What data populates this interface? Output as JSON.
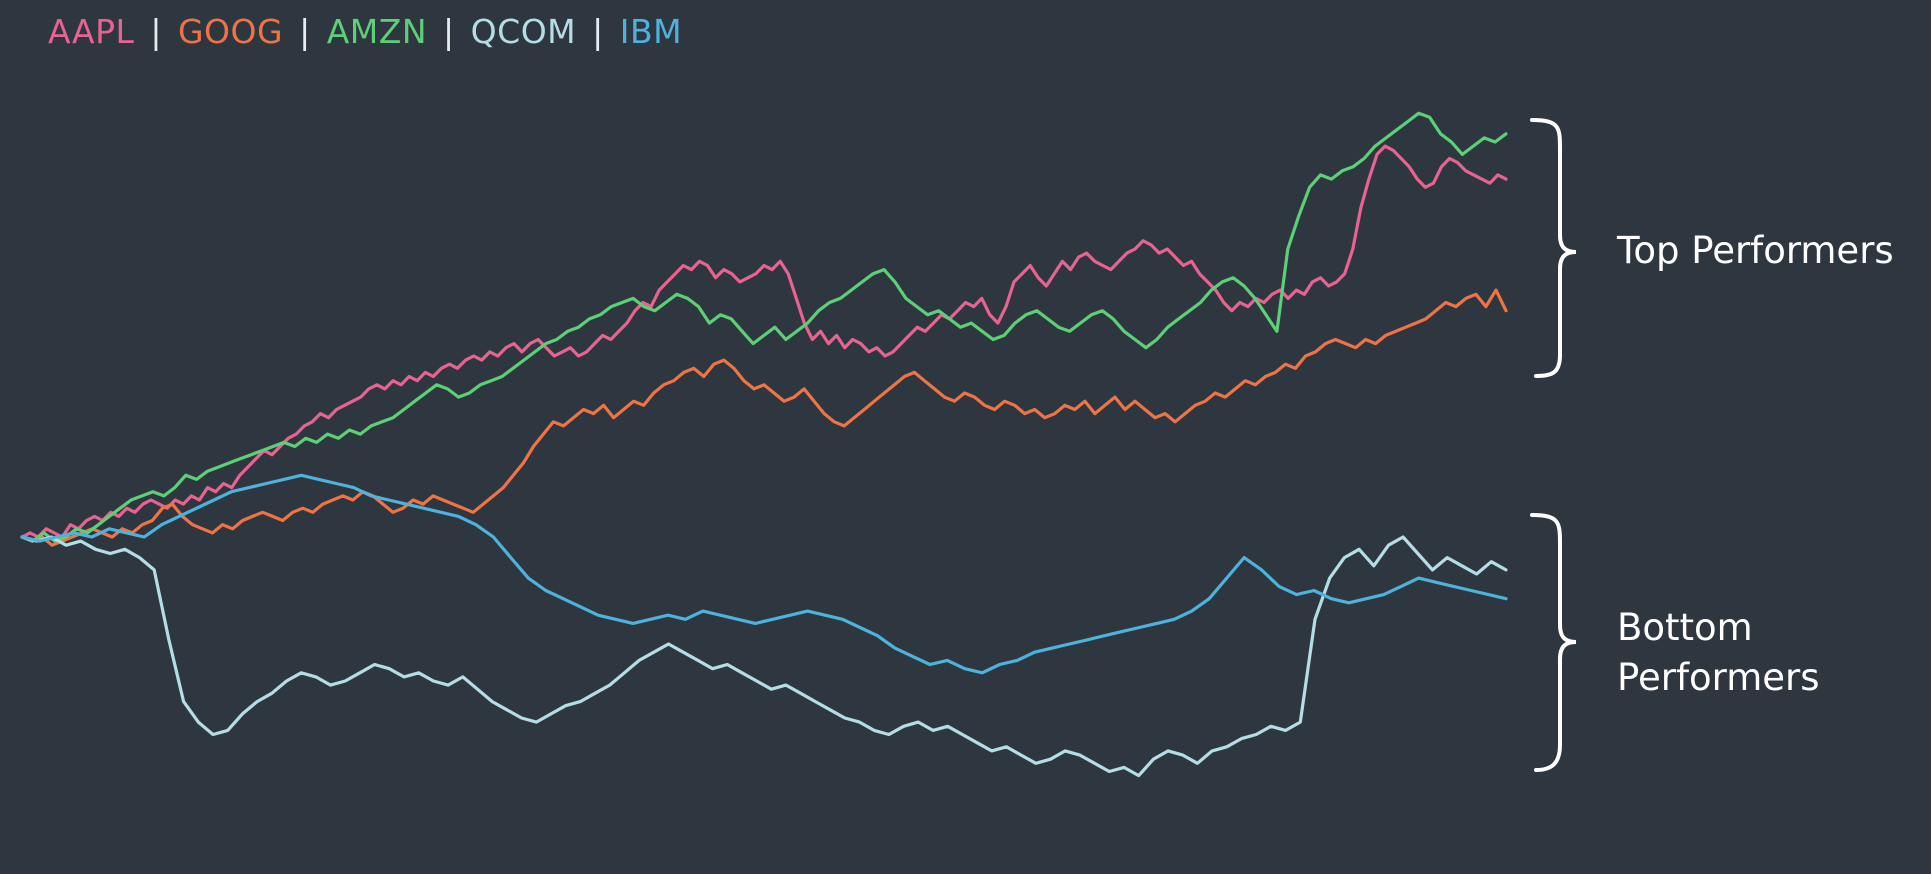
{
  "chart_data": {
    "type": "line",
    "title": "",
    "xlabel": "",
    "ylabel": "",
    "ylim": [
      -70,
      105
    ],
    "legend": "top-left",
    "grid": false,
    "series": [
      {
        "name": "AAPL",
        "color": "#e8638f",
        "values": [
          0,
          1,
          0,
          2,
          1,
          0,
          3,
          2,
          4,
          5,
          4,
          6,
          5,
          7,
          6,
          8,
          9,
          8,
          7,
          9,
          8,
          10,
          9,
          12,
          11,
          13,
          12,
          15,
          17,
          19,
          21,
          20,
          22,
          24,
          25,
          27,
          28,
          30,
          29,
          31,
          32,
          33,
          34,
          36,
          37,
          36,
          38,
          37,
          39,
          38,
          40,
          39,
          41,
          42,
          41,
          43,
          44,
          43,
          45,
          44,
          46,
          47,
          45,
          47,
          48,
          46,
          44,
          45,
          46,
          44,
          45,
          47,
          49,
          48,
          50,
          52,
          55,
          57,
          56,
          60,
          62,
          64,
          66,
          65,
          67,
          66,
          63,
          65,
          64,
          62,
          63,
          64,
          66,
          65,
          67,
          64,
          58,
          52,
          48,
          50,
          47,
          49,
          46,
          48,
          47,
          45,
          46,
          44,
          45,
          47,
          49,
          51,
          50,
          52,
          54,
          53,
          55,
          57,
          56,
          58,
          54,
          52,
          56,
          62,
          64,
          66,
          63,
          61,
          64,
          67,
          65,
          68,
          69,
          67,
          66,
          65,
          67,
          69,
          70,
          72,
          71,
          69,
          70,
          68,
          66,
          67,
          64,
          62,
          60,
          57,
          55,
          57,
          56,
          58,
          57,
          59,
          60,
          58,
          60,
          59,
          62,
          63,
          61,
          62,
          64,
          70,
          80,
          87,
          93,
          95,
          94,
          92,
          90,
          87,
          85,
          86,
          90,
          92,
          91,
          89,
          88,
          87,
          86,
          88,
          87
        ]
      },
      {
        "name": "GOOG",
        "color": "#ef7445",
        "values": [
          0,
          -1,
          0,
          -2,
          -1,
          0,
          1,
          2,
          1,
          0,
          2,
          1,
          3,
          4,
          7,
          8,
          5,
          3,
          2,
          1,
          3,
          2,
          4,
          5,
          6,
          5,
          4,
          6,
          7,
          6,
          8,
          9,
          10,
          9,
          11,
          10,
          8,
          6,
          7,
          9,
          8,
          10,
          9,
          8,
          7,
          6,
          8,
          10,
          12,
          15,
          18,
          22,
          25,
          28,
          27,
          29,
          31,
          30,
          32,
          29,
          31,
          33,
          32,
          35,
          37,
          38,
          40,
          41,
          39,
          42,
          43,
          41,
          38,
          36,
          37,
          35,
          33,
          34,
          36,
          33,
          30,
          28,
          27,
          29,
          31,
          33,
          35,
          37,
          39,
          40,
          38,
          36,
          34,
          33,
          35,
          34,
          32,
          31,
          33,
          32,
          30,
          31,
          29,
          30,
          32,
          31,
          33,
          30,
          32,
          34,
          31,
          33,
          31,
          29,
          30,
          28,
          30,
          32,
          33,
          35,
          34,
          36,
          38,
          37,
          39,
          40,
          42,
          41,
          44,
          45,
          47,
          48,
          47,
          46,
          48,
          47,
          49,
          50,
          51,
          52,
          53,
          55,
          57,
          56,
          58,
          59,
          56,
          60,
          55
        ]
      },
      {
        "name": "AMZN",
        "color": "#5dcf76",
        "values": [
          0,
          -1,
          1,
          -1,
          0,
          2,
          1,
          3,
          5,
          7,
          9,
          10,
          11,
          10,
          12,
          15,
          14,
          16,
          17,
          18,
          19,
          20,
          21,
          22,
          23,
          22,
          24,
          23,
          25,
          24,
          26,
          25,
          27,
          28,
          29,
          31,
          33,
          35,
          37,
          36,
          34,
          35,
          37,
          38,
          39,
          41,
          43,
          45,
          47,
          48,
          50,
          51,
          53,
          54,
          56,
          57,
          58,
          56,
          55,
          57,
          59,
          58,
          56,
          52,
          54,
          53,
          50,
          47,
          49,
          51,
          48,
          50,
          52,
          55,
          57,
          58,
          60,
          62,
          64,
          65,
          62,
          58,
          56,
          54,
          55,
          53,
          51,
          52,
          50,
          48,
          49,
          52,
          54,
          55,
          53,
          51,
          50,
          52,
          54,
          55,
          53,
          50,
          48,
          46,
          48,
          51,
          53,
          55,
          57,
          60,
          62,
          63,
          61,
          58,
          54,
          50,
          70,
          78,
          85,
          88,
          87,
          89,
          90,
          92,
          95,
          97,
          99,
          101,
          103,
          102,
          98,
          96,
          93,
          95,
          97,
          96,
          98
        ]
      },
      {
        "name": "QCOM",
        "color": "#b4dde6",
        "values": [
          0,
          -1,
          0,
          -2,
          -1,
          -3,
          -4,
          -3,
          -5,
          -8,
          -25,
          -40,
          -45,
          -48,
          -47,
          -43,
          -40,
          -38,
          -35,
          -33,
          -34,
          -36,
          -35,
          -33,
          -31,
          -32,
          -34,
          -33,
          -35,
          -36,
          -34,
          -37,
          -40,
          -42,
          -44,
          -45,
          -43,
          -41,
          -40,
          -38,
          -36,
          -33,
          -30,
          -28,
          -26,
          -28,
          -30,
          -32,
          -31,
          -33,
          -35,
          -37,
          -36,
          -38,
          -40,
          -42,
          -44,
          -45,
          -47,
          -48,
          -46,
          -45,
          -47,
          -46,
          -48,
          -50,
          -52,
          -51,
          -53,
          -55,
          -54,
          -52,
          -53,
          -55,
          -57,
          -56,
          -58,
          -54,
          -52,
          -53,
          -55,
          -52,
          -51,
          -49,
          -48,
          -46,
          -47,
          -45,
          -20,
          -10,
          -5,
          -3,
          -7,
          -2,
          0,
          -4,
          -8,
          -5,
          -7,
          -9,
          -6,
          -8
        ]
      },
      {
        "name": "IBM",
        "color": "#4db3dd",
        "values": [
          0,
          -1,
          0,
          1,
          0,
          2,
          1,
          0,
          3,
          5,
          7,
          9,
          11,
          12,
          13,
          14,
          15,
          14,
          13,
          12,
          10,
          9,
          8,
          7,
          6,
          5,
          3,
          0,
          -5,
          -10,
          -13,
          -15,
          -17,
          -19,
          -20,
          -21,
          -20,
          -19,
          -20,
          -18,
          -19,
          -20,
          -21,
          -20,
          -19,
          -18,
          -19,
          -20,
          -22,
          -24,
          -27,
          -29,
          -31,
          -30,
          -32,
          -33,
          -31,
          -30,
          -28,
          -27,
          -26,
          -25,
          -24,
          -23,
          -22,
          -21,
          -20,
          -18,
          -15,
          -10,
          -5,
          -8,
          -12,
          -14,
          -13,
          -15,
          -16,
          -15,
          -14,
          -12,
          -10,
          -11,
          -12,
          -13,
          -14,
          -15
        ]
      }
    ]
  },
  "legend": {
    "items": [
      {
        "label": "AAPL",
        "color": "#e8638f"
      },
      {
        "label": "GOOG",
        "color": "#ef7445"
      },
      {
        "label": "AMZN",
        "color": "#5dcf76"
      },
      {
        "label": "QCOM",
        "color": "#b4dde6"
      },
      {
        "label": "IBM",
        "color": "#4db3dd"
      }
    ],
    "separator": "|"
  },
  "annotations": {
    "top_label": "Top Performers",
    "bottom_label_line1": "Bottom",
    "bottom_label_line2": "Performers"
  }
}
